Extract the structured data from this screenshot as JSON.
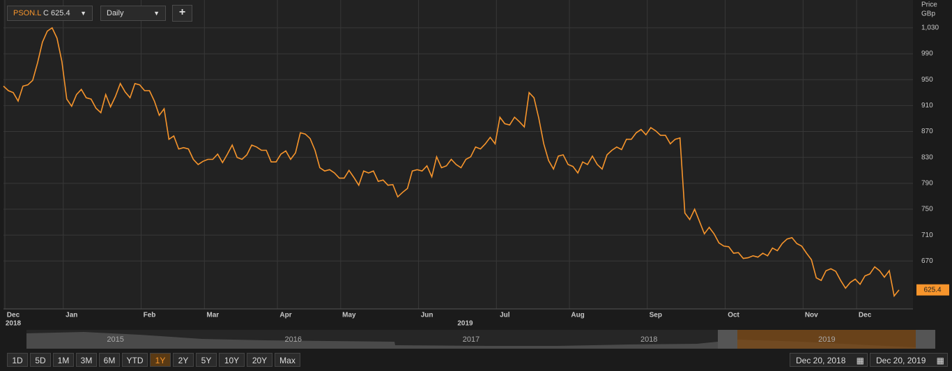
{
  "toolbar": {
    "ticker": "PSON.L",
    "close_prefix": "C",
    "interval": "Daily",
    "add": "+"
  },
  "chart_data": {
    "type": "line",
    "y_axis_title": "Price",
    "y_axis_unit": "GBp",
    "categories": [
      null,
      null,
      "Dec",
      null,
      null,
      null,
      null,
      null,
      null,
      null,
      null,
      null,
      null,
      null,
      "Jan",
      null,
      null,
      null,
      null,
      null,
      null,
      null,
      null,
      null,
      null,
      null,
      null,
      null,
      null,
      null,
      "Feb",
      null,
      null,
      null,
      null,
      null,
      null,
      null,
      null,
      null,
      null,
      null,
      null,
      "Mar",
      null,
      null,
      null,
      null,
      null,
      null,
      null,
      null,
      null,
      null,
      null,
      null,
      null,
      null,
      "Apr",
      null,
      null,
      null,
      null,
      null,
      null,
      null,
      null,
      null,
      null,
      null,
      null,
      "May",
      null,
      null,
      null,
      null,
      null,
      null,
      null,
      null,
      null,
      null,
      null,
      null,
      null,
      null,
      null,
      "Jun",
      null,
      null,
      null,
      null,
      null,
      null,
      null,
      null,
      null,
      null,
      null,
      null,
      null,
      null,
      null,
      "Jul",
      null,
      null,
      null,
      null,
      null,
      null,
      null,
      null,
      null,
      null,
      null,
      null,
      null,
      null,
      "Aug",
      null,
      null,
      null,
      null,
      null,
      null,
      null,
      null,
      null,
      null,
      null,
      null,
      null,
      null,
      null,
      "Sep",
      null,
      null,
      null,
      null,
      null,
      null,
      null,
      null,
      null,
      null,
      null,
      null,
      null,
      null,
      null,
      "Oct",
      null,
      null,
      null,
      null,
      null,
      null,
      null,
      null,
      null,
      null,
      null,
      null,
      null,
      null,
      null,
      "Nov",
      null,
      null,
      null,
      null,
      null,
      null,
      null,
      null,
      null,
      null,
      "Dec",
      null,
      null,
      null,
      null,
      null,
      null,
      null
    ],
    "year_labels": [
      "2018",
      "2019"
    ],
    "color": "#f7952c",
    "values": [
      940,
      933,
      930,
      917,
      940,
      942,
      949,
      976,
      1008,
      1025,
      1030,
      1014,
      978,
      920,
      909,
      927,
      935,
      922,
      920,
      906,
      899,
      927,
      908,
      924,
      944,
      931,
      922,
      944,
      942,
      933,
      933,
      917,
      895,
      905,
      858,
      863,
      843,
      845,
      843,
      827,
      819,
      824,
      827,
      827,
      835,
      822,
      835,
      849,
      830,
      827,
      834,
      849,
      846,
      841,
      841,
      823,
      823,
      835,
      840,
      827,
      837,
      868,
      866,
      859,
      841,
      814,
      809,
      811,
      806,
      798,
      798,
      810,
      799,
      787,
      809,
      806,
      809,
      793,
      795,
      787,
      788,
      769,
      776,
      782,
      809,
      811,
      809,
      817,
      800,
      831,
      814,
      817,
      827,
      819,
      814,
      827,
      831,
      846,
      843,
      851,
      861,
      851,
      892,
      882,
      880,
      892,
      885,
      877,
      930,
      922,
      890,
      851,
      825,
      812,
      832,
      834,
      819,
      816,
      806,
      823,
      819,
      832,
      819,
      812,
      834,
      841,
      846,
      842,
      858,
      858,
      868,
      873,
      865,
      876,
      871,
      864,
      864,
      851,
      858,
      860,
      744,
      734,
      750,
      731,
      712,
      722,
      712,
      698,
      693,
      692,
      682,
      683,
      674,
      675,
      678,
      676,
      682,
      678,
      690,
      686,
      697,
      704,
      706,
      697,
      693,
      682,
      672,
      644,
      640,
      655,
      658,
      654,
      640,
      628,
      637,
      642,
      634,
      647,
      650,
      661,
      655,
      645,
      655,
      616,
      625.4
    ],
    "ylim": [
      596,
      1073
    ],
    "yticks": [
      670,
      710,
      750,
      790,
      830,
      870,
      910,
      950,
      990,
      {
        "value": 1030,
        "label": "1,030"
      }
    ],
    "grid": true
  },
  "navigator": {
    "years": [
      "2015",
      "2016",
      "2017",
      "2018",
      "2019"
    ]
  },
  "range_buttons": [
    {
      "label": "1D"
    },
    {
      "label": "5D"
    },
    {
      "label": "1M"
    },
    {
      "label": "3M"
    },
    {
      "label": "6M"
    },
    {
      "label": "YTD"
    },
    {
      "label": "1Y",
      "active": true
    },
    {
      "label": "2Y"
    },
    {
      "label": "5Y"
    },
    {
      "label": "10Y"
    },
    {
      "label": "20Y"
    },
    {
      "label": "Max"
    }
  ],
  "date_range": {
    "from": "Dec 20, 2018",
    "to": "Dec 20, 2019"
  }
}
